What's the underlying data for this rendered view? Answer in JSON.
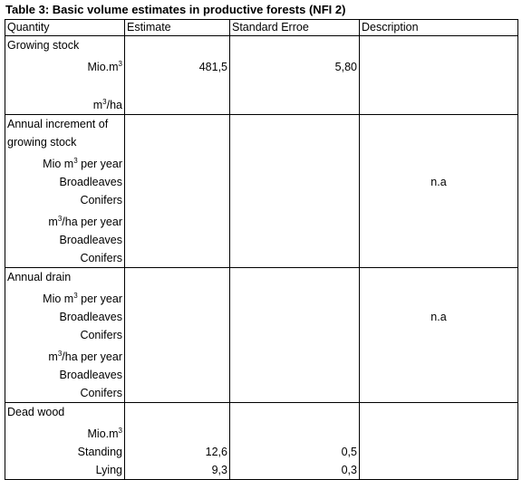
{
  "title": "Table 3: Basic volume estimates in productive forests (NFI 2)",
  "headers": [
    "Quantity",
    "Estimate",
    "Standard Erroe",
    "Description"
  ],
  "growing": {
    "label": "Growing stock",
    "mio": "Mio.m",
    "mio_est": "481,5",
    "mio_se": "5,80",
    "ha": "m",
    "ha_suffix": "/ha"
  },
  "increment": {
    "label1": "Annual increment of",
    "label2": "growing stock",
    "mio": "Mio m",
    "mio_suffix": " per year",
    "broad": "Broadleaves",
    "conif": "Conifers",
    "ha": "m",
    "ha_suffix": "/ha per year",
    "broad2": "Broadleaves",
    "conif2": "Conifers",
    "desc": "n.a"
  },
  "drain": {
    "label": "Annual drain",
    "mio": "Mio m",
    "mio_suffix": " per year",
    "broad": "Broadleaves",
    "conif": "Conifers",
    "ha": "m",
    "ha_suffix": "/ha per year",
    "broad2": "Broadleaves",
    "conif2": "Conifers",
    "desc": "n.a"
  },
  "dead": {
    "label": "Dead wood",
    "mio": "Mio.m",
    "standing": "Standing",
    "standing_est": "12,6",
    "standing_se": "0,5",
    "lying": "Lying",
    "lying_est": "9,3",
    "lying_se": "0,3"
  },
  "sup3": "3"
}
